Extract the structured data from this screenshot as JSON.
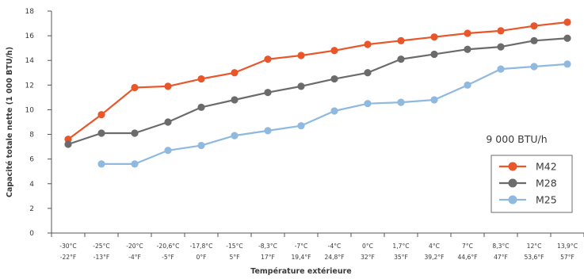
{
  "chart_data": {
    "type": "line",
    "title": "",
    "xlabel": "Température extérieure",
    "ylabel": "Capacité totale nette (1 000 BTU/h)",
    "ylim": [
      0,
      18
    ],
    "yticks": [
      0,
      2,
      4,
      6,
      8,
      10,
      12,
      14,
      16,
      18
    ],
    "grid": false,
    "legend_title": "9 000 BTU/h",
    "legend_position": "right",
    "categories": [
      [
        "-30°C",
        "-22°F"
      ],
      [
        "-25°C",
        "-13°F"
      ],
      [
        "-20°C",
        "-4°F"
      ],
      [
        "-20,6°C",
        "-5°F"
      ],
      [
        "-17,8°C",
        "0°F"
      ],
      [
        "-15°C",
        "5°F"
      ],
      [
        "-8,3°C",
        "17°F"
      ],
      [
        "-7°C",
        "19,4°F"
      ],
      [
        "-4°C",
        "24,8°F"
      ],
      [
        "0°C",
        "32°F"
      ],
      [
        "1,7°C",
        "35°F"
      ],
      [
        "4°C",
        "39,2°F"
      ],
      [
        "7°C",
        "44,6°F"
      ],
      [
        "8,3°C",
        "47°F"
      ],
      [
        "12°C",
        "53,6°F"
      ],
      [
        "13,9°C",
        "57°F"
      ]
    ],
    "series": [
      {
        "name": "M42",
        "color": "#e8562a",
        "values": [
          7.6,
          9.6,
          11.8,
          11.9,
          12.5,
          13.0,
          14.1,
          14.4,
          14.8,
          15.3,
          15.6,
          15.9,
          16.2,
          16.4,
          16.8,
          17.1
        ]
      },
      {
        "name": "M28",
        "color": "#6b6b6b",
        "values": [
          7.2,
          8.1,
          8.1,
          9.0,
          10.2,
          10.8,
          11.4,
          11.9,
          12.5,
          13.0,
          14.1,
          14.5,
          14.9,
          15.1,
          15.6,
          15.8
        ]
      },
      {
        "name": "M25",
        "color": "#8fb9de",
        "values": [
          null,
          5.6,
          5.6,
          6.7,
          7.1,
          7.9,
          8.3,
          8.7,
          9.9,
          10.5,
          10.6,
          10.8,
          12.0,
          13.3,
          13.5,
          13.7
        ]
      }
    ]
  }
}
